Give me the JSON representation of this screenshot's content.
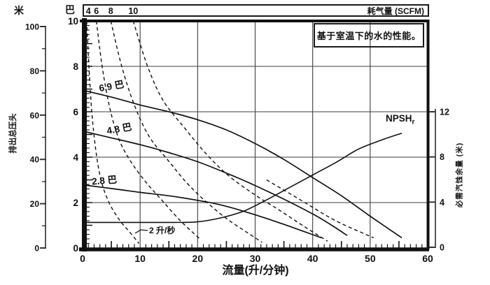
{
  "figure": {
    "background": "#ffffff",
    "ink": "#111111",
    "grid_color": "#3d3d3d"
  },
  "chart_data": {
    "type": "line",
    "note": "基于室温下的水的性能。",
    "x_axis": {
      "label": "流量(升/分钟)",
      "min": 0,
      "max": 60,
      "major_ticks": [
        0,
        10,
        20,
        30,
        40,
        50,
        60
      ],
      "medium_tick_step": 5,
      "minor_tick_step": 1
    },
    "y_axis_bar": {
      "unit": "巴",
      "min": 0,
      "max": 10,
      "ticks": [
        0,
        2,
        4,
        6,
        8,
        10
      ],
      "minor_tick_step": 0.2
    },
    "y_axis_meters": {
      "unit": "米",
      "axis_title": "排出总压头",
      "min": 0,
      "max": 100,
      "ticks": [
        0,
        20,
        40,
        60,
        80,
        100
      ],
      "minor_tick_step": 10
    },
    "y_axis_npsh": {
      "axis_title": "必需汽蚀余量 (米)",
      "min": 0,
      "max": 12,
      "ticks": [
        0,
        4,
        8,
        12
      ]
    },
    "top_axis": {
      "label": "耗气量 (SCFM)",
      "tick_labels": [
        "4",
        "6",
        "8",
        "10"
      ],
      "tick_flows": [
        1.0,
        2.4,
        4.9,
        8.8
      ]
    },
    "grid": {
      "x_lines": [
        10,
        20,
        30,
        40,
        50
      ],
      "y_lines_bar": [
        2,
        4,
        6,
        8
      ]
    },
    "pressure_curves": [
      {
        "label": "6.9 巴",
        "style": "solid",
        "points": [
          [
            0,
            6.95
          ],
          [
            5,
            6.65
          ],
          [
            10,
            6.3
          ],
          [
            15,
            6.0
          ],
          [
            20,
            5.65
          ],
          [
            25,
            5.2
          ],
          [
            30,
            4.6
          ],
          [
            35,
            3.9
          ],
          [
            40,
            3.1
          ],
          [
            45,
            2.3
          ],
          [
            50,
            1.4
          ],
          [
            55.5,
            0.45
          ]
        ]
      },
      {
        "label": "4.8 巴",
        "style": "solid",
        "points": [
          [
            0,
            5.15
          ],
          [
            5,
            4.85
          ],
          [
            10,
            4.55
          ],
          [
            15,
            4.2
          ],
          [
            20,
            3.8
          ],
          [
            25,
            3.3
          ],
          [
            30,
            2.75
          ],
          [
            35,
            2.15
          ],
          [
            40,
            1.5
          ],
          [
            43,
            1.05
          ],
          [
            46,
            0.55
          ]
        ]
      },
      {
        "label": "2.8 巴",
        "style": "solid",
        "points": [
          [
            0,
            2.78
          ],
          [
            5,
            2.62
          ],
          [
            10,
            2.45
          ],
          [
            15,
            2.3
          ],
          [
            20,
            2.1
          ],
          [
            24,
            1.9
          ],
          [
            28,
            1.62
          ],
          [
            32,
            1.3
          ],
          [
            36,
            0.95
          ],
          [
            39,
            0.68
          ],
          [
            41.5,
            0.45
          ]
        ]
      }
    ],
    "air_curves": [
      {
        "label": "4",
        "style": "dashed",
        "points": [
          [
            0.7,
            10
          ],
          [
            1.1,
            8
          ],
          [
            1.6,
            6
          ],
          [
            2.3,
            4.3
          ],
          [
            3.2,
            3.0
          ],
          [
            4.6,
            2.0
          ],
          [
            6.5,
            1.2
          ],
          [
            8.2,
            0.7
          ],
          [
            9.8,
            0.2
          ]
        ]
      },
      {
        "label": "6",
        "style": "dashed",
        "points": [
          [
            2.4,
            10
          ],
          [
            3.4,
            8
          ],
          [
            4.7,
            6.2
          ],
          [
            6.3,
            4.8
          ],
          [
            8.4,
            3.8
          ],
          [
            11.0,
            2.9
          ],
          [
            13.8,
            2.1
          ],
          [
            17.0,
            1.2
          ],
          [
            20.6,
            0.35
          ]
        ]
      },
      {
        "label": "8",
        "style": "dashed",
        "points": [
          [
            4.9,
            10
          ],
          [
            6.8,
            8
          ],
          [
            9.0,
            6.3
          ],
          [
            11.6,
            4.9
          ],
          [
            14.9,
            3.85
          ],
          [
            18.0,
            2.9
          ],
          [
            21.2,
            2.1
          ],
          [
            25.0,
            1.3
          ],
          [
            28.5,
            0.7
          ],
          [
            31.2,
            0.25
          ]
        ]
      },
      {
        "label": "10",
        "style": "dashed",
        "points": [
          [
            8.8,
            10
          ],
          [
            11.3,
            8
          ],
          [
            14.0,
            6.5
          ],
          [
            17.7,
            5.3
          ],
          [
            21.3,
            4.2
          ],
          [
            25.3,
            3.2
          ],
          [
            29.9,
            2.35
          ],
          [
            34.0,
            1.7
          ],
          [
            38.5,
            0.95
          ],
          [
            42.6,
            0.3
          ]
        ]
      },
      {
        "label": "",
        "style": "dashed",
        "points": [
          [
            32.0,
            3.0
          ],
          [
            38.0,
            2.1
          ],
          [
            44.0,
            1.2
          ],
          [
            50.6,
            0.45
          ]
        ]
      }
    ],
    "air_flow_annotation": {
      "text": "2 升/秒"
    },
    "npshr_curve": {
      "label": "NPSH",
      "label_sub": "r",
      "axis": "npsh",
      "points": [
        [
          0,
          2.2
        ],
        [
          8,
          2.2
        ],
        [
          16,
          2.2
        ],
        [
          20,
          2.25
        ],
        [
          24,
          2.6
        ],
        [
          28,
          3.2
        ],
        [
          32,
          4.2
        ],
        [
          36,
          5.3
        ],
        [
          40,
          6.4
        ],
        [
          44,
          7.5
        ],
        [
          48,
          8.7
        ],
        [
          52,
          9.5
        ],
        [
          55.5,
          10.1
        ]
      ]
    }
  }
}
